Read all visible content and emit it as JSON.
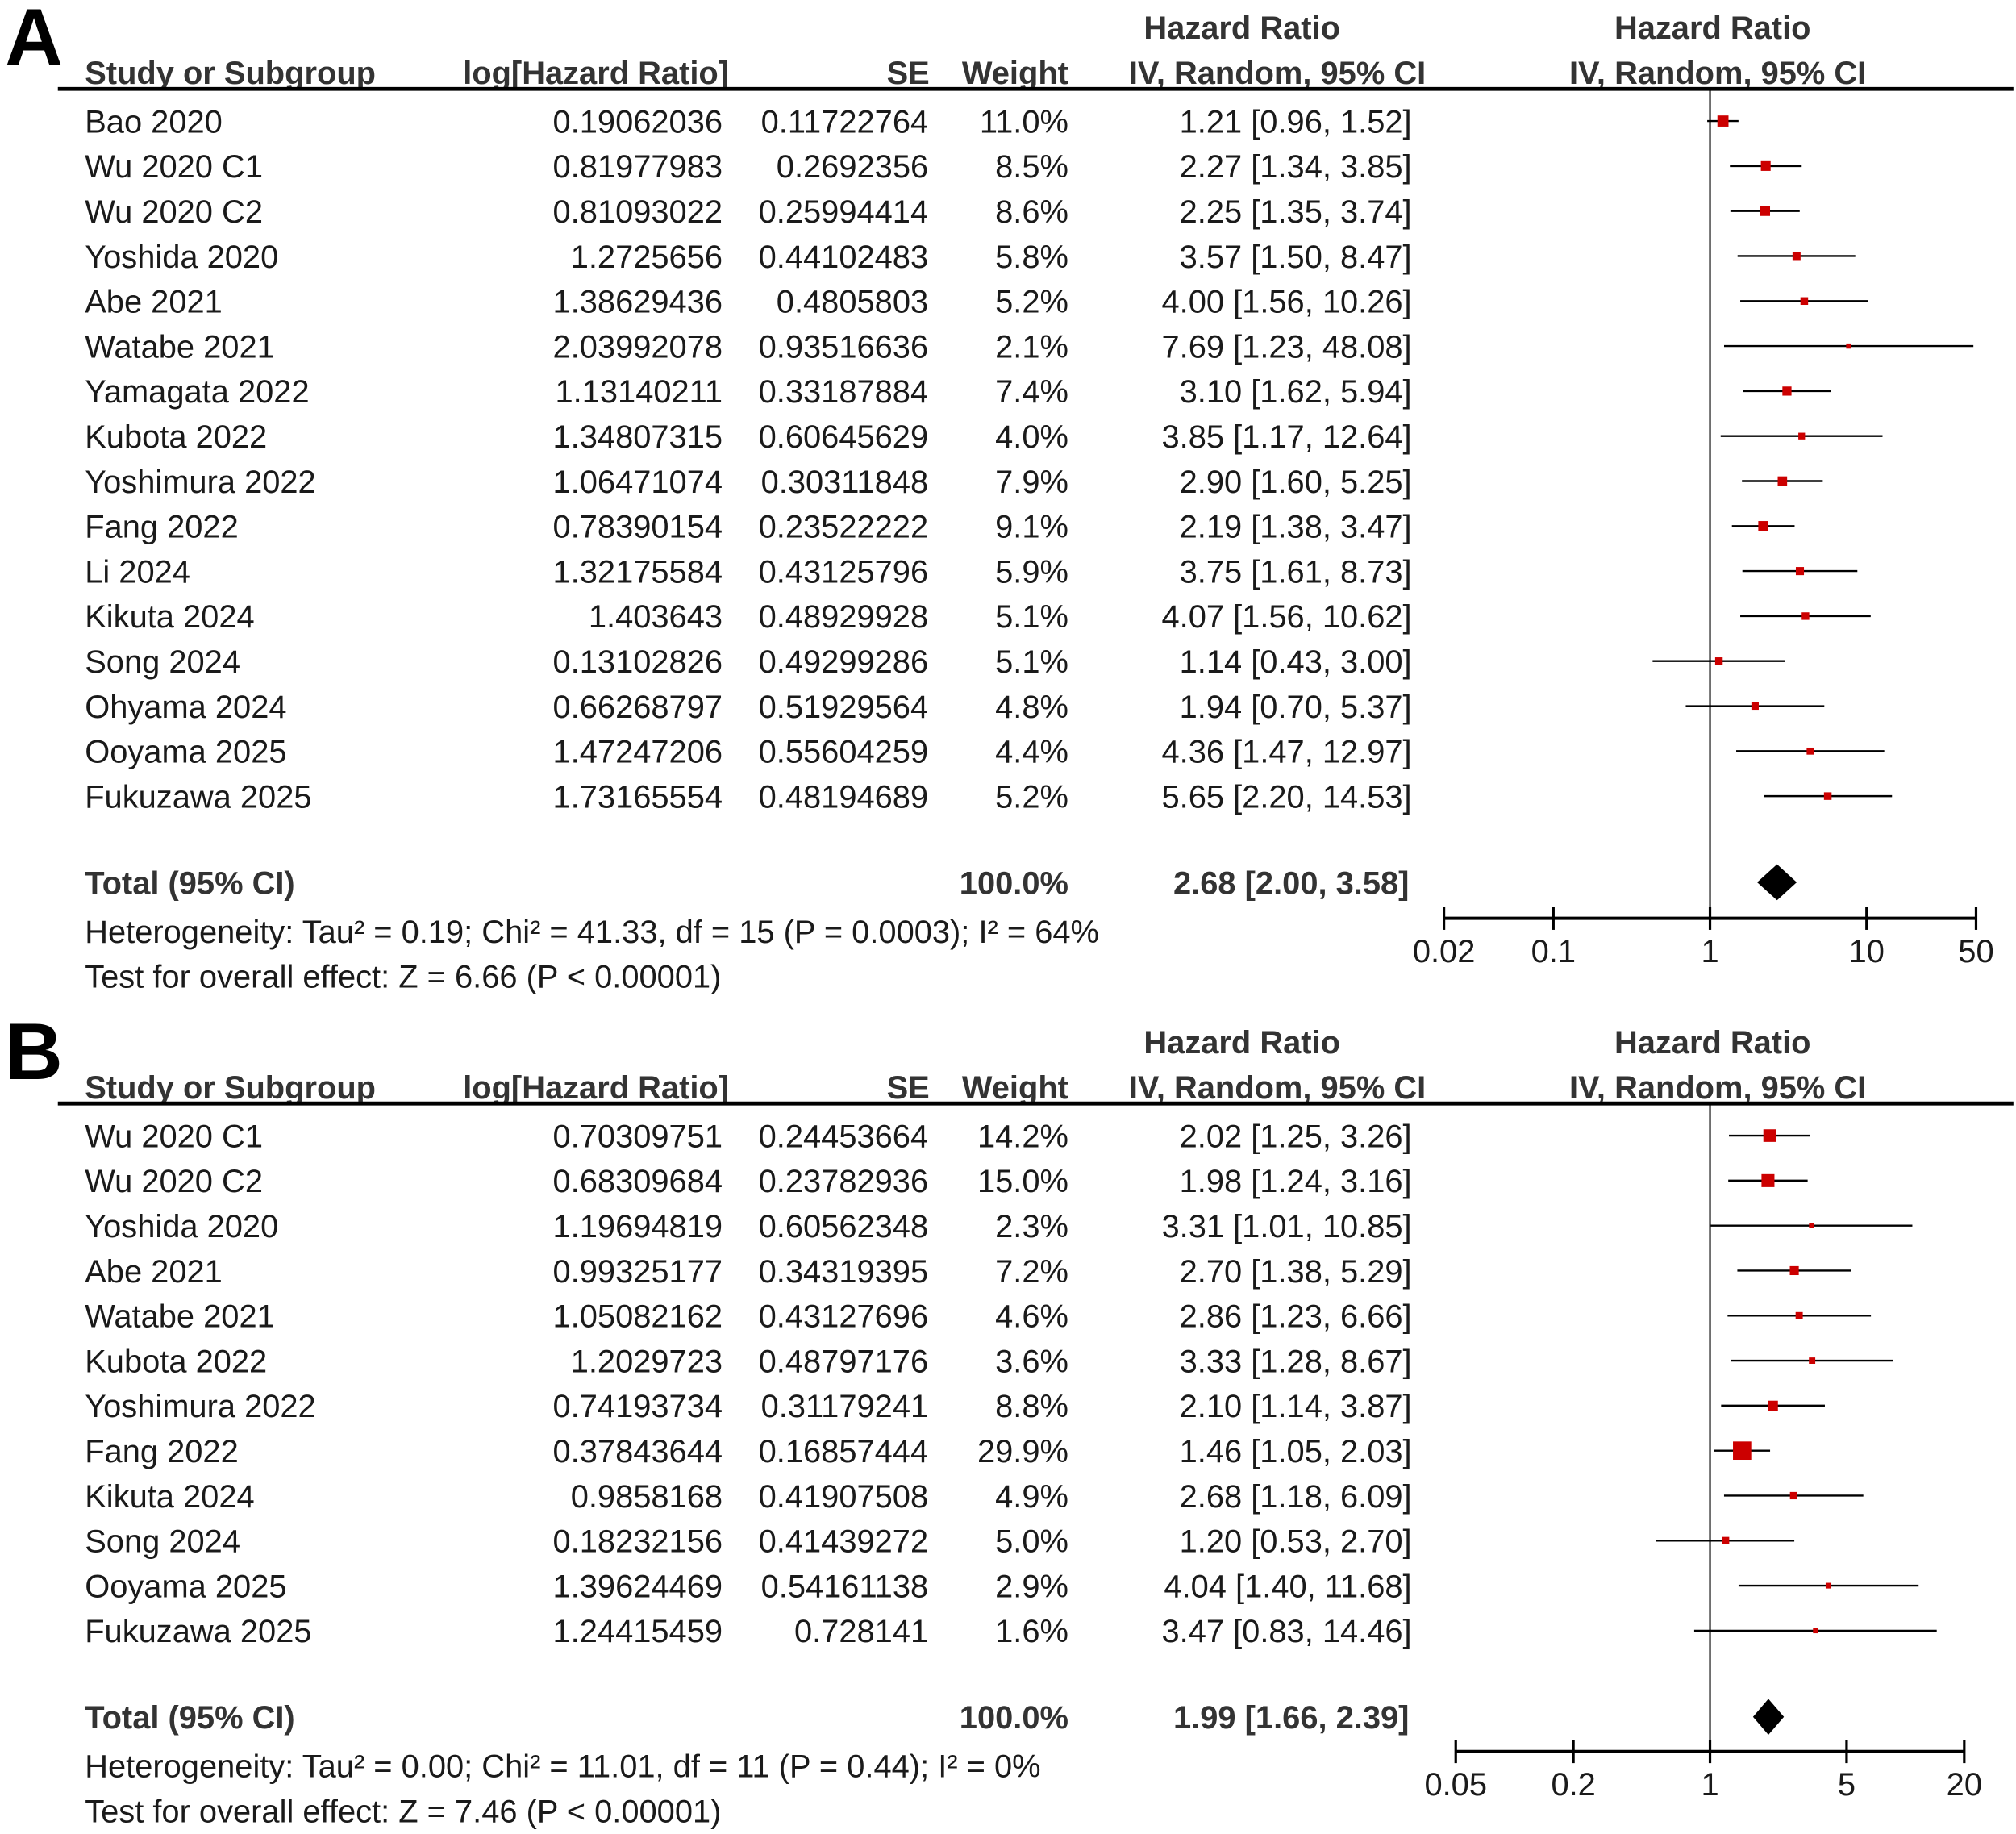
{
  "chart_data": [
    {
      "type": "forest",
      "panel_label": "A",
      "headers": {
        "group_title_1": "Hazard Ratio",
        "group_title_2": "Hazard Ratio",
        "study": "Study or Subgroup",
        "loghr": "log[Hazard Ratio]",
        "se": "SE",
        "weight": "Weight",
        "ci": "IV, Random, 95% CI",
        "plot_ci": "IV, Random, 95% CI"
      },
      "rows": [
        {
          "study": "Bao 2020",
          "loghr": "0.19062036",
          "se": "0.11722764",
          "weight": "11.0%",
          "w": 11.0,
          "ci_text": "1.21 [0.96, 1.52]",
          "hr": 1.21,
          "lo": 0.96,
          "hi": 1.52
        },
        {
          "study": "Wu 2020 C1",
          "loghr": "0.81977983",
          "se": "0.2692356",
          "weight": "8.5%",
          "w": 8.5,
          "ci_text": "2.27 [1.34, 3.85]",
          "hr": 2.27,
          "lo": 1.34,
          "hi": 3.85
        },
        {
          "study": "Wu 2020 C2",
          "loghr": "0.81093022",
          "se": "0.25994414",
          "weight": "8.6%",
          "w": 8.6,
          "ci_text": "2.25 [1.35, 3.74]",
          "hr": 2.25,
          "lo": 1.35,
          "hi": 3.74
        },
        {
          "study": "Yoshida 2020",
          "loghr": "1.2725656",
          "se": "0.44102483",
          "weight": "5.8%",
          "w": 5.8,
          "ci_text": "3.57 [1.50, 8.47]",
          "hr": 3.57,
          "lo": 1.5,
          "hi": 8.47
        },
        {
          "study": "Abe 2021",
          "loghr": "1.38629436",
          "se": "0.4805803",
          "weight": "5.2%",
          "w": 5.2,
          "ci_text": "4.00 [1.56, 10.26]",
          "hr": 4.0,
          "lo": 1.56,
          "hi": 10.26
        },
        {
          "study": "Watabe 2021",
          "loghr": "2.03992078",
          "se": "0.93516636",
          "weight": "2.1%",
          "w": 2.1,
          "ci_text": "7.69 [1.23, 48.08]",
          "hr": 7.69,
          "lo": 1.23,
          "hi": 48.08
        },
        {
          "study": "Yamagata 2022",
          "loghr": "1.13140211",
          "se": "0.33187884",
          "weight": "7.4%",
          "w": 7.4,
          "ci_text": "3.10 [1.62, 5.94]",
          "hr": 3.1,
          "lo": 1.62,
          "hi": 5.94
        },
        {
          "study": "Kubota 2022",
          "loghr": "1.34807315",
          "se": "0.60645629",
          "weight": "4.0%",
          "w": 4.0,
          "ci_text": "3.85 [1.17, 12.64]",
          "hr": 3.85,
          "lo": 1.17,
          "hi": 12.64
        },
        {
          "study": "Yoshimura 2022",
          "loghr": "1.06471074",
          "se": "0.30311848",
          "weight": "7.9%",
          "w": 7.9,
          "ci_text": "2.90 [1.60, 5.25]",
          "hr": 2.9,
          "lo": 1.6,
          "hi": 5.25
        },
        {
          "study": "Fang 2022",
          "loghr": "0.78390154",
          "se": "0.23522222",
          "weight": "9.1%",
          "w": 9.1,
          "ci_text": "2.19 [1.38, 3.47]",
          "hr": 2.19,
          "lo": 1.38,
          "hi": 3.47
        },
        {
          "study": "Li 2024",
          "loghr": "1.32175584",
          "se": "0.43125796",
          "weight": "5.9%",
          "w": 5.9,
          "ci_text": "3.75 [1.61, 8.73]",
          "hr": 3.75,
          "lo": 1.61,
          "hi": 8.73
        },
        {
          "study": "Kikuta 2024",
          "loghr": "1.403643",
          "se": "0.48929928",
          "weight": "5.1%",
          "w": 5.1,
          "ci_text": "4.07 [1.56, 10.62]",
          "hr": 4.07,
          "lo": 1.56,
          "hi": 10.62
        },
        {
          "study": "Song 2024",
          "loghr": "0.13102826",
          "se": "0.49299286",
          "weight": "5.1%",
          "w": 5.1,
          "ci_text": "1.14 [0.43, 3.00]",
          "hr": 1.14,
          "lo": 0.43,
          "hi": 3.0
        },
        {
          "study": "Ohyama 2024",
          "loghr": "0.66268797",
          "se": "0.51929564",
          "weight": "4.8%",
          "w": 4.8,
          "ci_text": "1.94 [0.70, 5.37]",
          "hr": 1.94,
          "lo": 0.7,
          "hi": 5.37
        },
        {
          "study": "Ooyama 2025",
          "loghr": "1.47247206",
          "se": "0.55604259",
          "weight": "4.4%",
          "w": 4.4,
          "ci_text": "4.36 [1.47, 12.97]",
          "hr": 4.36,
          "lo": 1.47,
          "hi": 12.97
        },
        {
          "study": "Fukuzawa 2025",
          "loghr": "1.73165554",
          "se": "0.48194689",
          "weight": "5.2%",
          "w": 5.2,
          "ci_text": "5.65 [2.20, 14.53]",
          "hr": 5.65,
          "lo": 2.2,
          "hi": 14.53
        }
      ],
      "total": {
        "label": "Total (95% CI)",
        "weight": "100.0%",
        "ci_text": "2.68 [2.00, 3.58]",
        "hr": 2.68,
        "lo": 2.0,
        "hi": 3.58
      },
      "heterogeneity": "Heterogeneity: Tau² = 0.19; Chi² = 41.33, df = 15 (P = 0.0003); I² = 64%",
      "overall_effect": "Test for overall effect: Z = 6.66 (P < 0.00001)",
      "axis": {
        "scale": "log",
        "range": [
          0.02,
          50
        ],
        "ticks": [
          0.02,
          0.1,
          1,
          10,
          50
        ],
        "tick_labels": [
          "0.02",
          "0.1",
          "1",
          "10",
          "50"
        ]
      },
      "colors": {
        "square": "#cc0000",
        "diamond": "#000000"
      }
    },
    {
      "type": "forest",
      "panel_label": "B",
      "headers": {
        "group_title_1": "Hazard Ratio",
        "group_title_2": "Hazard Ratio",
        "study": "Study or Subgroup",
        "loghr": "log[Hazard Ratio]",
        "se": "SE",
        "weight": "Weight",
        "ci": "IV, Random, 95% CI",
        "plot_ci": "IV, Random, 95% CI"
      },
      "rows": [
        {
          "study": "Wu 2020 C1",
          "loghr": "0.70309751",
          "se": "0.24453664",
          "weight": "14.2%",
          "w": 14.2,
          "ci_text": "2.02 [1.25, 3.26]",
          "hr": 2.02,
          "lo": 1.25,
          "hi": 3.26
        },
        {
          "study": "Wu 2020 C2",
          "loghr": "0.68309684",
          "se": "0.23782936",
          "weight": "15.0%",
          "w": 15.0,
          "ci_text": "1.98 [1.24, 3.16]",
          "hr": 1.98,
          "lo": 1.24,
          "hi": 3.16
        },
        {
          "study": "Yoshida 2020",
          "loghr": "1.19694819",
          "se": "0.60562348",
          "weight": "2.3%",
          "w": 2.3,
          "ci_text": "3.31 [1.01, 10.85]",
          "hr": 3.31,
          "lo": 1.01,
          "hi": 10.85
        },
        {
          "study": "Abe 2021",
          "loghr": "0.99325177",
          "se": "0.34319395",
          "weight": "7.2%",
          "w": 7.2,
          "ci_text": "2.70 [1.38, 5.29]",
          "hr": 2.7,
          "lo": 1.38,
          "hi": 5.29
        },
        {
          "study": "Watabe 2021",
          "loghr": "1.05082162",
          "se": "0.43127696",
          "weight": "4.6%",
          "w": 4.6,
          "ci_text": "2.86 [1.23, 6.66]",
          "hr": 2.86,
          "lo": 1.23,
          "hi": 6.66
        },
        {
          "study": "Kubota 2022",
          "loghr": "1.2029723",
          "se": "0.48797176",
          "weight": "3.6%",
          "w": 3.6,
          "ci_text": "3.33 [1.28, 8.67]",
          "hr": 3.33,
          "lo": 1.28,
          "hi": 8.67
        },
        {
          "study": "Yoshimura 2022",
          "loghr": "0.74193734",
          "se": "0.31179241",
          "weight": "8.8%",
          "w": 8.8,
          "ci_text": "2.10 [1.14, 3.87]",
          "hr": 2.1,
          "lo": 1.14,
          "hi": 3.87
        },
        {
          "study": "Fang 2022",
          "loghr": "0.37843644",
          "se": "0.16857444",
          "weight": "29.9%",
          "w": 29.9,
          "ci_text": "1.46 [1.05, 2.03]",
          "hr": 1.46,
          "lo": 1.05,
          "hi": 2.03
        },
        {
          "study": "Kikuta 2024",
          "loghr": "0.9858168",
          "se": "0.41907508",
          "weight": "4.9%",
          "w": 4.9,
          "ci_text": "2.68 [1.18, 6.09]",
          "hr": 2.68,
          "lo": 1.18,
          "hi": 6.09
        },
        {
          "study": "Song 2024",
          "loghr": "0.18232156",
          "se": "0.41439272",
          "weight": "5.0%",
          "w": 5.0,
          "ci_text": "1.20 [0.53, 2.70]",
          "hr": 1.2,
          "lo": 0.53,
          "hi": 2.7
        },
        {
          "study": "Ooyama 2025",
          "loghr": "1.39624469",
          "se": "0.54161138",
          "weight": "2.9%",
          "w": 2.9,
          "ci_text": "4.04 [1.40, 11.68]",
          "hr": 4.04,
          "lo": 1.4,
          "hi": 11.68
        },
        {
          "study": "Fukuzawa 2025",
          "loghr": "1.24415459",
          "se": "0.728141",
          "weight": "1.6%",
          "w": 1.6,
          "ci_text": "3.47 [0.83, 14.46]",
          "hr": 3.47,
          "lo": 0.83,
          "hi": 14.46
        }
      ],
      "total": {
        "label": "Total (95% CI)",
        "weight": "100.0%",
        "ci_text": "1.99 [1.66, 2.39]",
        "hr": 1.99,
        "lo": 1.66,
        "hi": 2.39
      },
      "heterogeneity": "Heterogeneity: Tau² = 0.00; Chi² = 11.01, df = 11 (P = 0.44); I² = 0%",
      "overall_effect": "Test for overall effect: Z = 7.46 (P < 0.00001)",
      "axis": {
        "scale": "log",
        "range": [
          0.05,
          20
        ],
        "ticks": [
          0.05,
          0.2,
          1,
          5,
          20
        ],
        "tick_labels": [
          "0.05",
          "0.2",
          "1",
          "5",
          "20"
        ]
      },
      "colors": {
        "square": "#cc0000",
        "diamond": "#000000"
      }
    }
  ]
}
